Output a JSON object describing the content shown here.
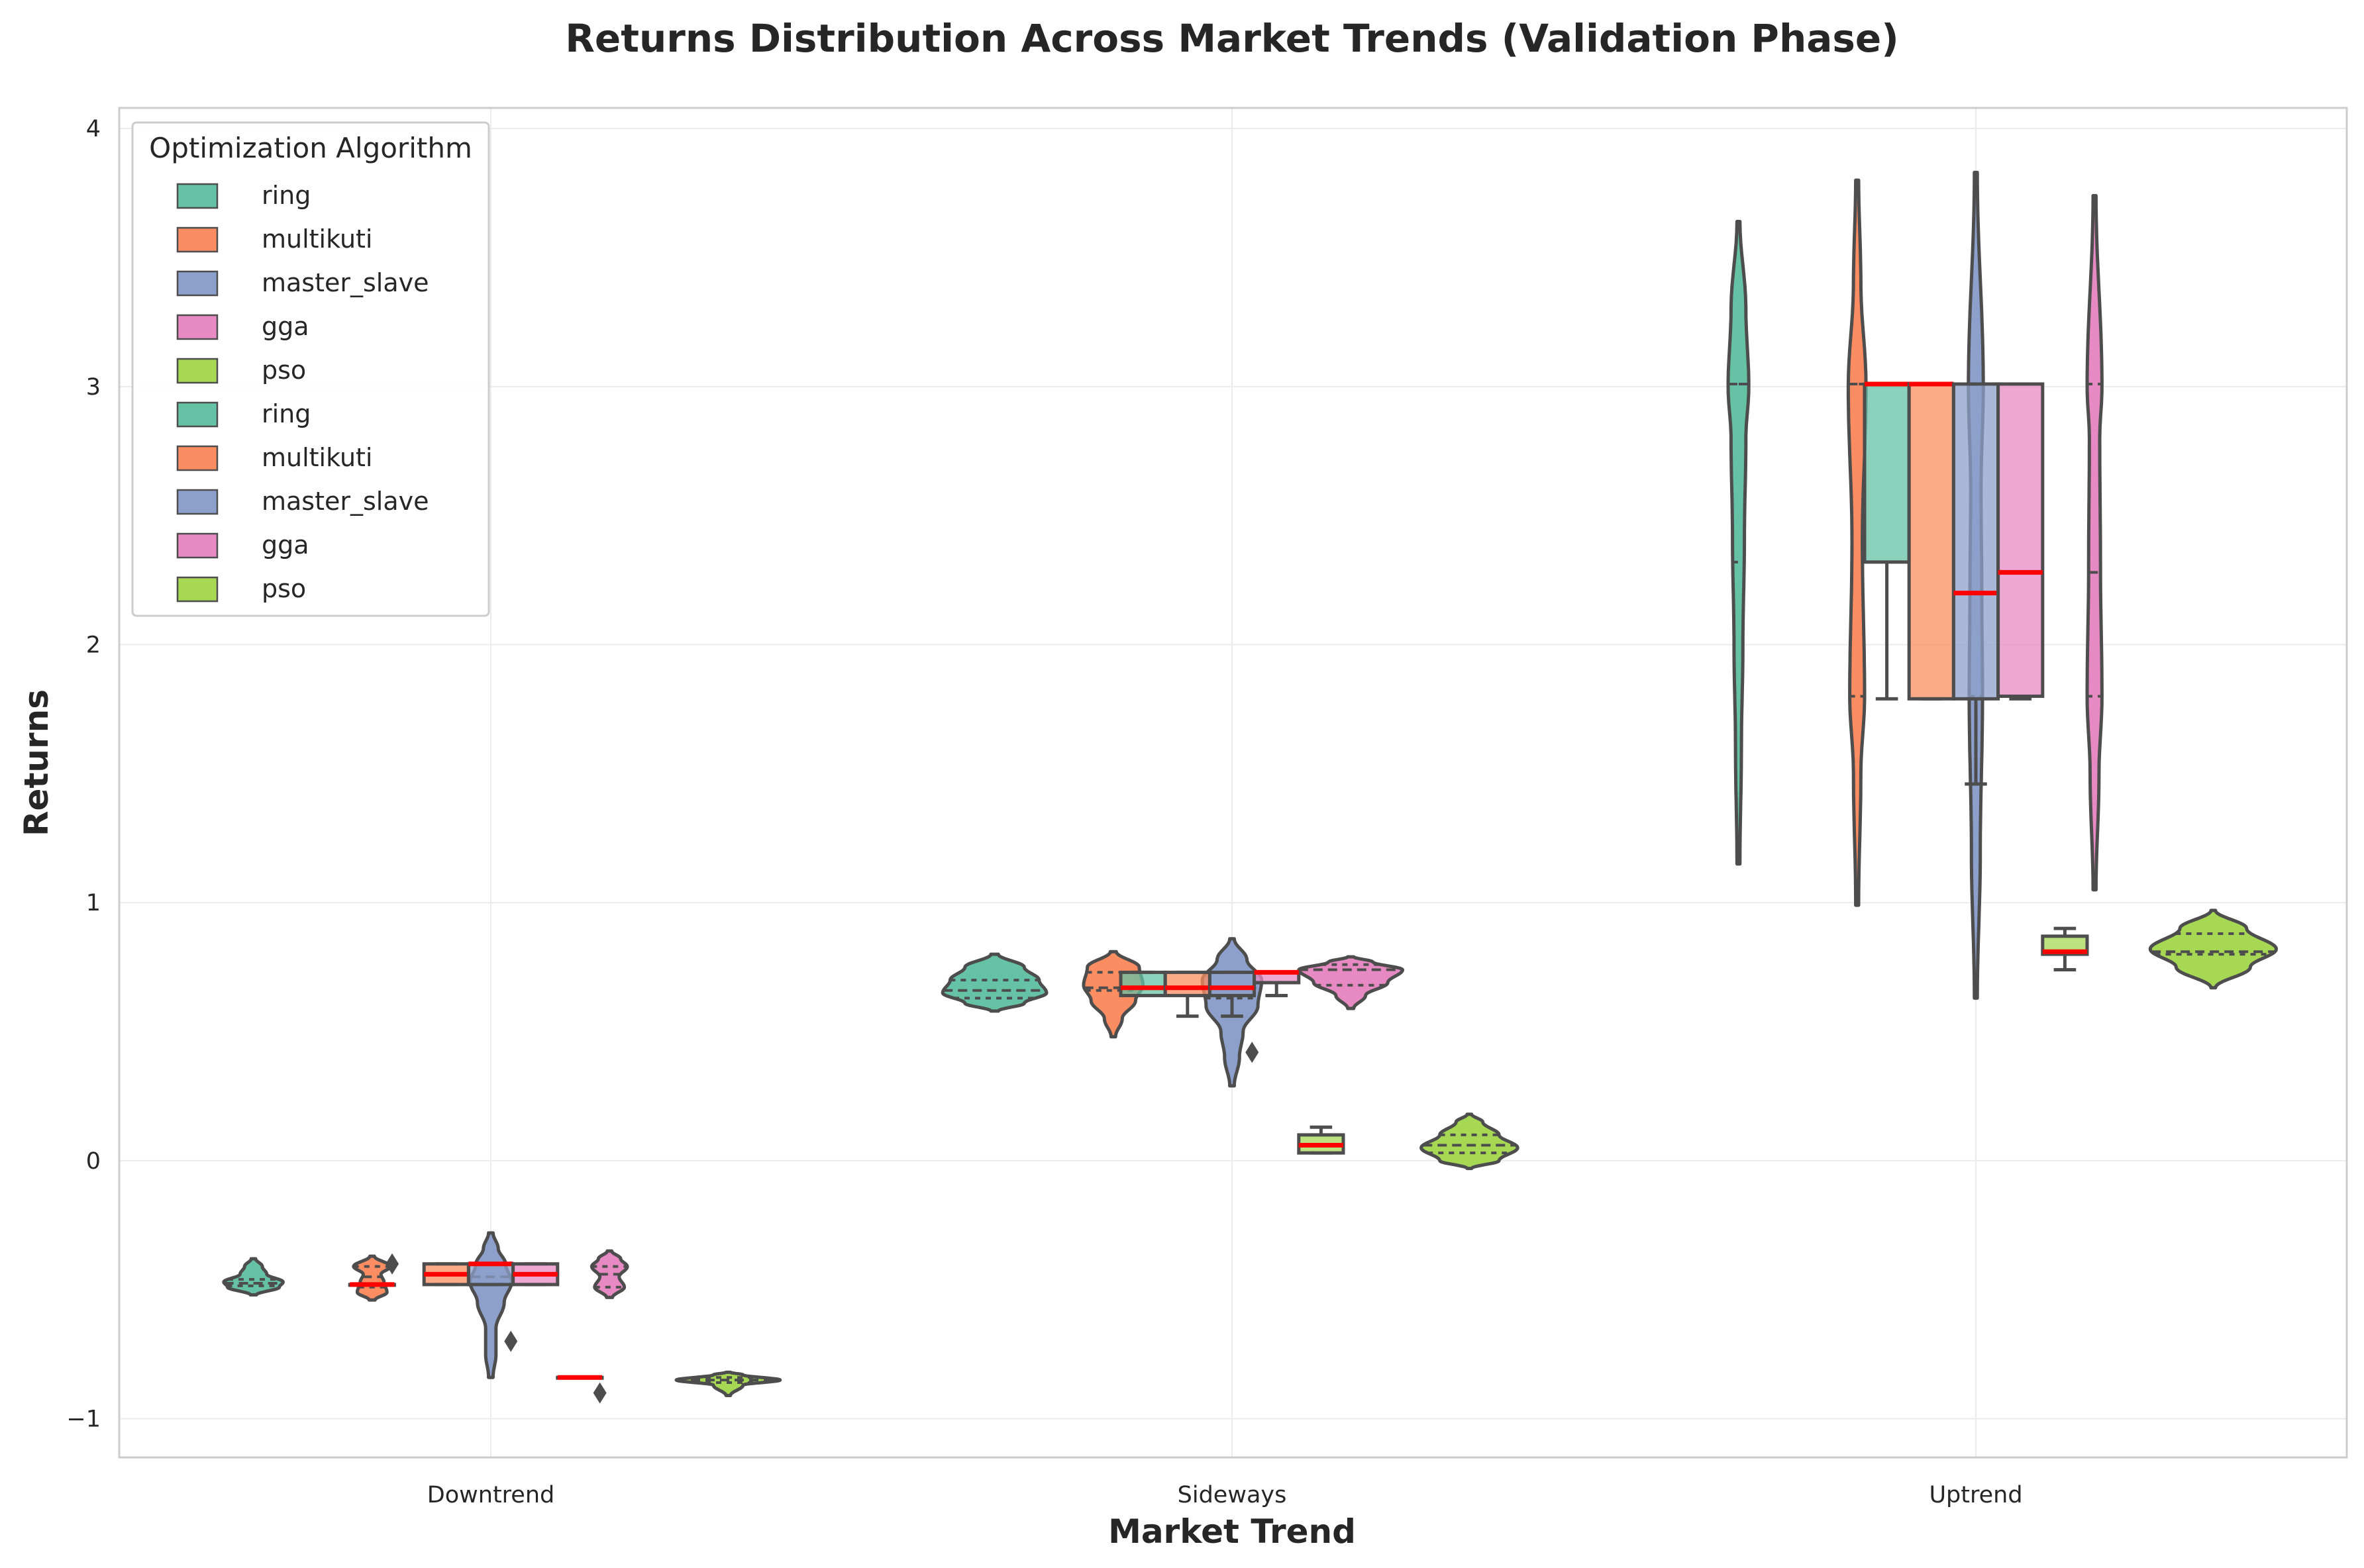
{
  "chart_data": {
    "type": "violin+box",
    "title": "Returns Distribution Across Market Trends (Validation Phase)",
    "xlabel": "Market Trend",
    "ylabel": "Returns",
    "categories": [
      "Downtrend",
      "Sideways",
      "Uptrend"
    ],
    "ylim": [
      -1.15,
      4.08
    ],
    "yticks": [
      -1,
      0,
      1,
      2,
      3,
      4
    ],
    "ytick_labels": [
      "−1",
      "0",
      "1",
      "2",
      "3",
      "4"
    ],
    "grid": true,
    "legend": {
      "title": "Optimization Algorithm",
      "placement": "top-left",
      "entries": [
        "ring",
        "multikuti",
        "master_slave",
        "gga",
        "pso",
        "ring",
        "multikuti",
        "master_slave",
        "gga",
        "pso"
      ],
      "colors": [
        "#66c2a5",
        "#fc8d62",
        "#8da0cb",
        "#e78ac3",
        "#a6d854",
        "#66c2a5",
        "#fc8d62",
        "#8da0cb",
        "#e78ac3",
        "#a6d854"
      ]
    },
    "median_color": "#ff0000",
    "edge_color": "#4d4d4d",
    "violins": [
      {
        "category": "Downtrend",
        "series": "ring",
        "xoff": -0.32,
        "color": "#66c2a5",
        "y": [
          -0.52,
          -0.49,
          -0.47,
          -0.44,
          -0.41,
          -0.38
        ],
        "w": [
          0.004,
          0.035,
          0.04,
          0.018,
          0.012,
          0.003
        ],
        "quartiles": [
          -0.485,
          -0.475,
          -0.46
        ]
      },
      {
        "category": "Downtrend",
        "series": "multikuti",
        "xoff": -0.16,
        "color": "#fc8d62",
        "y": [
          -0.54,
          -0.51,
          -0.47,
          -0.44,
          -0.41,
          -0.37
        ],
        "w": [
          0.004,
          0.02,
          0.016,
          0.012,
          0.025,
          0.003
        ],
        "quartiles": [
          -0.49,
          -0.45,
          -0.41
        ]
      },
      {
        "category": "Downtrend",
        "series": "master_slave",
        "xoff": 0.0,
        "color": "#8da0cb",
        "y": [
          -0.84,
          -0.75,
          -0.65,
          -0.55,
          -0.47,
          -0.4,
          -0.34,
          -0.28
        ],
        "w": [
          0.003,
          0.007,
          0.007,
          0.018,
          0.028,
          0.02,
          0.01,
          0.003
        ],
        "quartiles": [
          -0.48,
          -0.45,
          -0.4
        ]
      },
      {
        "category": "Downtrend",
        "series": "gga",
        "xoff": 0.16,
        "color": "#e78ac3",
        "y": [
          -0.53,
          -0.49,
          -0.45,
          -0.41,
          -0.38,
          -0.35
        ],
        "w": [
          0.004,
          0.02,
          0.013,
          0.024,
          0.015,
          0.003
        ],
        "quartiles": [
          -0.49,
          -0.44,
          -0.41
        ]
      },
      {
        "category": "Downtrend",
        "series": "pso",
        "xoff": 0.32,
        "color": "#a6d854",
        "y": [
          -0.91,
          -0.87,
          -0.85,
          -0.83,
          -0.82
        ],
        "w": [
          0.003,
          0.02,
          0.07,
          0.02,
          0.003
        ],
        "quartiles": [
          -0.86,
          -0.85,
          -0.84
        ]
      },
      {
        "category": "Sideways",
        "series": "ring",
        "xoff": -0.32,
        "color": "#66c2a5",
        "y": [
          0.58,
          0.61,
          0.65,
          0.7,
          0.75,
          0.8
        ],
        "w": [
          0.005,
          0.04,
          0.07,
          0.06,
          0.04,
          0.005
        ],
        "quartiles": [
          0.63,
          0.66,
          0.7
        ]
      },
      {
        "category": "Sideways",
        "series": "multikuti",
        "xoff": -0.16,
        "color": "#fc8d62",
        "y": [
          0.48,
          0.55,
          0.62,
          0.68,
          0.75,
          0.81
        ],
        "w": [
          0.003,
          0.012,
          0.03,
          0.04,
          0.035,
          0.004
        ],
        "quartiles": [
          0.66,
          0.67,
          0.73
        ]
      },
      {
        "category": "Sideways",
        "series": "master_slave",
        "xoff": 0.0,
        "color": "#8da0cb",
        "y": [
          0.29,
          0.4,
          0.5,
          0.6,
          0.7,
          0.78,
          0.86
        ],
        "w": [
          0.003,
          0.01,
          0.015,
          0.035,
          0.04,
          0.02,
          0.003
        ],
        "quartiles": [
          0.63,
          0.67,
          0.73
        ]
      },
      {
        "category": "Sideways",
        "series": "gga",
        "xoff": 0.16,
        "color": "#e78ac3",
        "y": [
          0.59,
          0.64,
          0.69,
          0.74,
          0.77,
          0.79
        ],
        "w": [
          0.004,
          0.02,
          0.05,
          0.07,
          0.03,
          0.004
        ],
        "quartiles": [
          0.68,
          0.74,
          0.76
        ]
      },
      {
        "category": "Sideways",
        "series": "pso",
        "xoff": 0.32,
        "color": "#a6d854",
        "y": [
          -0.03,
          0.0,
          0.05,
          0.1,
          0.15,
          0.18
        ],
        "w": [
          0.003,
          0.04,
          0.065,
          0.04,
          0.018,
          0.003
        ],
        "quartiles": [
          0.03,
          0.06,
          0.1
        ]
      },
      {
        "category": "Uptrend",
        "series": "ring",
        "xoff": -0.32,
        "color": "#66c2a5",
        "y": [
          1.15,
          1.6,
          2.0,
          2.4,
          2.8,
          3.0,
          3.3,
          3.64
        ],
        "w": [
          0.002,
          0.004,
          0.006,
          0.008,
          0.01,
          0.014,
          0.01,
          0.002
        ],
        "quartiles": [
          2.32,
          3.01,
          3.01
        ]
      },
      {
        "category": "Uptrend",
        "series": "multikuti",
        "xoff": -0.16,
        "color": "#fc8d62",
        "y": [
          0.99,
          1.5,
          1.8,
          2.4,
          3.0,
          3.4,
          3.8
        ],
        "w": [
          0.002,
          0.005,
          0.01,
          0.007,
          0.012,
          0.005,
          0.002
        ],
        "quartiles": [
          1.8,
          3.01,
          3.01
        ]
      },
      {
        "category": "Uptrend",
        "series": "master_slave",
        "xoff": 0.0,
        "color": "#8da0cb",
        "y": [
          0.63,
          1.2,
          1.8,
          2.2,
          2.6,
          3.0,
          3.83
        ],
        "w": [
          0.002,
          0.006,
          0.009,
          0.008,
          0.007,
          0.01,
          0.002
        ],
        "quartiles": [
          1.8,
          2.2,
          3.01
        ]
      },
      {
        "category": "Uptrend",
        "series": "gga",
        "xoff": 0.16,
        "color": "#e78ac3",
        "y": [
          1.05,
          1.5,
          1.8,
          2.3,
          2.8,
          3.0,
          3.74
        ],
        "w": [
          0.002,
          0.006,
          0.01,
          0.008,
          0.007,
          0.01,
          0.002
        ],
        "quartiles": [
          1.8,
          2.28,
          3.01
        ]
      },
      {
        "category": "Uptrend",
        "series": "pso",
        "xoff": 0.32,
        "color": "#a6d854",
        "y": [
          0.67,
          0.75,
          0.82,
          0.9,
          0.97
        ],
        "w": [
          0.003,
          0.05,
          0.085,
          0.045,
          0.003
        ],
        "quartiles": [
          0.8,
          0.81,
          0.88
        ]
      }
    ],
    "boxes": [
      {
        "category": "Downtrend",
        "series": "ring",
        "xoff": -0.16,
        "color": "#66c2a5",
        "q1": -0.48,
        "median": -0.48,
        "q3": -0.48,
        "whisker_low": -0.48,
        "whisker_high": -0.48,
        "outliers": [
          -0.4
        ]
      },
      {
        "category": "Downtrend",
        "series": "multikuti",
        "xoff": -0.06,
        "color": "#fc8d62",
        "q1": -0.48,
        "median": -0.44,
        "q3": -0.4,
        "whisker_low": -0.48,
        "whisker_high": -0.4,
        "outliers": []
      },
      {
        "category": "Downtrend",
        "series": "master_slave",
        "xoff": 0.0,
        "color": "#8da0cb",
        "q1": -0.48,
        "median": -0.4,
        "q3": -0.4,
        "whisker_low": -0.48,
        "whisker_high": -0.4,
        "outliers": [
          -0.7
        ]
      },
      {
        "category": "Downtrend",
        "series": "gga",
        "xoff": 0.06,
        "color": "#e78ac3",
        "q1": -0.48,
        "median": -0.44,
        "q3": -0.4,
        "whisker_low": -0.48,
        "whisker_high": -0.4,
        "outliers": []
      },
      {
        "category": "Downtrend",
        "series": "pso",
        "xoff": 0.12,
        "color": "#a6d854",
        "q1": -0.84,
        "median": -0.84,
        "q3": -0.84,
        "whisker_low": -0.84,
        "whisker_high": -0.84,
        "outliers": [
          -0.9
        ]
      },
      {
        "category": "Sideways",
        "series": "ring",
        "xoff": -0.12,
        "color": "#66c2a5",
        "q1": 0.64,
        "median": 0.67,
        "q3": 0.73,
        "whisker_low": 0.64,
        "whisker_high": 0.73,
        "outliers": []
      },
      {
        "category": "Sideways",
        "series": "multikuti",
        "xoff": -0.06,
        "color": "#fc8d62",
        "q1": 0.64,
        "median": 0.67,
        "q3": 0.73,
        "whisker_low": 0.56,
        "whisker_high": 0.73,
        "outliers": []
      },
      {
        "category": "Sideways",
        "series": "master_slave",
        "xoff": 0.0,
        "color": "#8da0cb",
        "q1": 0.64,
        "median": 0.67,
        "q3": 0.73,
        "whisker_low": 0.56,
        "whisker_high": 0.73,
        "outliers": [
          0.42
        ]
      },
      {
        "category": "Sideways",
        "series": "gga",
        "xoff": 0.06,
        "color": "#e78ac3",
        "q1": 0.69,
        "median": 0.73,
        "q3": 0.73,
        "whisker_low": 0.64,
        "whisker_high": 0.73,
        "outliers": []
      },
      {
        "category": "Sideways",
        "series": "pso",
        "xoff": 0.12,
        "color": "#a6d854",
        "q1": 0.03,
        "median": 0.06,
        "q3": 0.1,
        "whisker_low": 0.03,
        "whisker_high": 0.13,
        "outliers": []
      },
      {
        "category": "Uptrend",
        "series": "ring",
        "xoff": -0.12,
        "color": "#66c2a5",
        "q1": 2.32,
        "median": 3.01,
        "q3": 3.01,
        "whisker_low": 1.79,
        "whisker_high": 3.01,
        "outliers": []
      },
      {
        "category": "Uptrend",
        "series": "multikuti",
        "xoff": -0.06,
        "color": "#fc8d62",
        "q1": 1.79,
        "median": 3.01,
        "q3": 3.01,
        "whisker_low": 1.79,
        "whisker_high": 3.01,
        "outliers": []
      },
      {
        "category": "Uptrend",
        "series": "master_slave",
        "xoff": 0.0,
        "color": "#8da0cb",
        "q1": 1.79,
        "median": 2.2,
        "q3": 3.01,
        "whisker_low": 1.46,
        "whisker_high": 3.01,
        "outliers": []
      },
      {
        "category": "Uptrend",
        "series": "gga",
        "xoff": 0.06,
        "color": "#e78ac3",
        "q1": 1.8,
        "median": 2.28,
        "q3": 3.01,
        "whisker_low": 1.79,
        "whisker_high": 3.01,
        "outliers": []
      },
      {
        "category": "Uptrend",
        "series": "pso",
        "xoff": 0.12,
        "color": "#a6d854",
        "q1": 0.8,
        "median": 0.81,
        "q3": 0.87,
        "whisker_low": 0.74,
        "whisker_high": 0.9,
        "outliers": []
      }
    ]
  }
}
